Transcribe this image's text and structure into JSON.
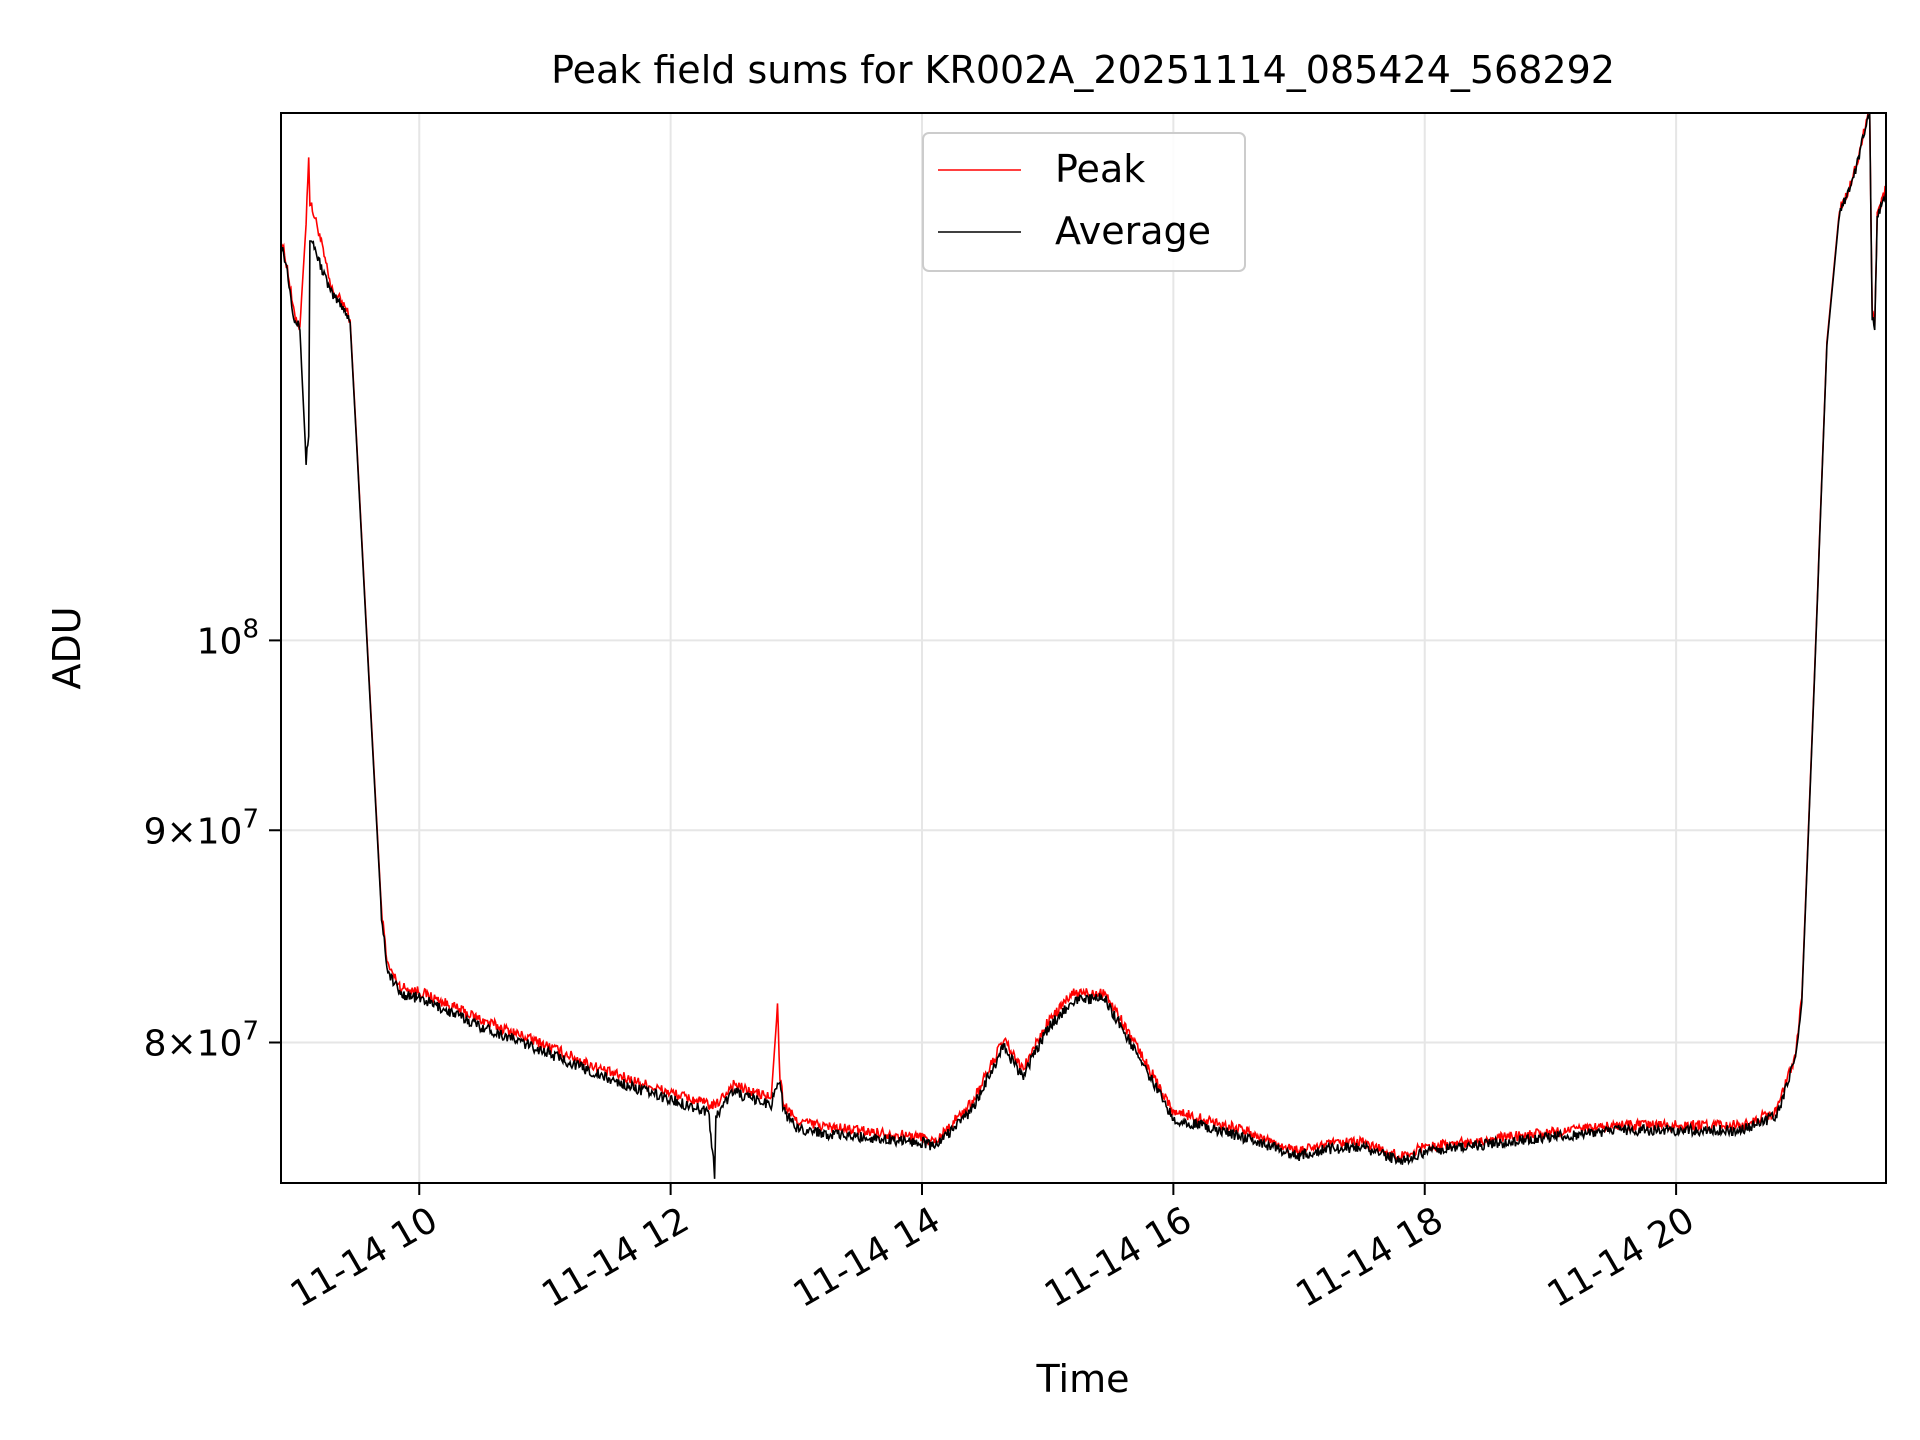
{
  "chart_data": {
    "type": "line",
    "title": "Peak field sums for KR002A_20251114_085424_568292",
    "xlabel": "Time",
    "ylabel": "ADU",
    "x_unit": "hours (2025-11-14)",
    "xlim": [
      8.9,
      21.67
    ],
    "ylim": [
      74000000,
      134000000
    ],
    "yscale": "log",
    "grid": true,
    "legend_position": "upper center",
    "x_ticks": [
      {
        "value": 10,
        "label": "11-14 10"
      },
      {
        "value": 12,
        "label": "11-14 12"
      },
      {
        "value": 14,
        "label": "11-14 14"
      },
      {
        "value": 16,
        "label": "11-14 16"
      },
      {
        "value": 18,
        "label": "11-14 18"
      },
      {
        "value": 20,
        "label": "11-14 20"
      }
    ],
    "y_ticks": [
      {
        "value": 80000000,
        "label_base": "8×10",
        "label_exp": "7"
      },
      {
        "value": 90000000,
        "label_base": "9×10",
        "label_exp": "7"
      },
      {
        "value": 100000000,
        "label_base": "10",
        "label_exp": "8"
      }
    ],
    "series": [
      {
        "name": "Peak",
        "color": "#ff0000",
        "x": [
          8.9,
          8.95,
          9.0,
          9.05,
          9.1,
          9.12,
          9.13,
          9.15,
          9.2,
          9.3,
          9.4,
          9.45,
          9.5,
          9.6,
          9.7,
          9.75,
          9.85,
          10.0,
          10.5,
          11.0,
          11.5,
          12.0,
          12.3,
          12.35,
          12.5,
          12.6,
          12.8,
          12.85,
          12.87,
          12.9,
          13.0,
          13.3,
          14.0,
          14.1,
          14.4,
          14.65,
          14.8,
          15.0,
          15.2,
          15.45,
          15.7,
          16.0,
          16.5,
          17.0,
          17.2,
          17.5,
          17.8,
          18.0,
          18.5,
          19.0,
          19.5,
          20.0,
          20.5,
          20.8,
          20.95,
          21.0,
          21.1,
          21.2,
          21.3,
          21.4,
          21.52,
          21.54,
          21.56,
          21.58,
          21.6,
          21.67
        ],
        "values": [
          125000000,
          123000000,
          120000000,
          119000000,
          126000000,
          131000000,
          127500000,
          127000000,
          125500000,
          121500000,
          120500000,
          119500000,
          112000000,
          98000000,
          86000000,
          83500000,
          82500000,
          82300000,
          81000000,
          79900000,
          78700000,
          77800000,
          77300000,
          77200000,
          78200000,
          77900000,
          77600000,
          81600000,
          78500000,
          77300000,
          76600000,
          76300000,
          75900000,
          75700000,
          77400000,
          80100000,
          78800000,
          80900000,
          82200000,
          82300000,
          79900000,
          77000000,
          76300000,
          75300000,
          75600000,
          75700000,
          75100000,
          75500000,
          75800000,
          76100000,
          76400000,
          76400000,
          76400000,
          77000000,
          79500000,
          82000000,
          98000000,
          118000000,
          127000000,
          129000000,
          133500000,
          134000000,
          120000000,
          119000000,
          126500000,
          128500000
        ]
      },
      {
        "name": "Average",
        "color": "#000000",
        "x": [
          8.9,
          8.95,
          9.0,
          9.05,
          9.1,
          9.12,
          9.13,
          9.15,
          9.2,
          9.3,
          9.4,
          9.45,
          9.5,
          9.6,
          9.7,
          9.75,
          9.85,
          10.0,
          10.5,
          11.0,
          11.5,
          12.0,
          12.3,
          12.34,
          12.35,
          12.36,
          12.5,
          12.6,
          12.8,
          12.85,
          12.87,
          12.9,
          13.0,
          13.3,
          14.0,
          14.1,
          14.4,
          14.65,
          14.8,
          15.0,
          15.2,
          15.45,
          15.7,
          16.0,
          16.5,
          17.0,
          17.2,
          17.5,
          17.8,
          18.0,
          18.5,
          19.0,
          19.5,
          20.0,
          20.5,
          20.8,
          20.95,
          21.0,
          21.1,
          21.2,
          21.3,
          21.4,
          21.52,
          21.54,
          21.56,
          21.58,
          21.6,
          21.67
        ],
        "values": [
          124800000,
          122800000,
          119800000,
          118800000,
          110500000,
          112000000,
          125000000,
          124800000,
          123500000,
          121200000,
          120300000,
          119300000,
          111800000,
          97800000,
          85800000,
          83200000,
          82200000,
          82000000,
          80700000,
          79600000,
          78400000,
          77500000,
          77000000,
          75000000,
          74000000,
          76800000,
          77900000,
          77600000,
          77300000,
          78300000,
          78200000,
          77000000,
          76300000,
          76000000,
          75700000,
          75500000,
          77100000,
          79800000,
          78500000,
          80600000,
          81900000,
          82000000,
          79600000,
          76700000,
          76000000,
          75100000,
          75400000,
          75500000,
          74900000,
          75300000,
          75600000,
          75900000,
          76200000,
          76200000,
          76200000,
          76800000,
          79300000,
          81800000,
          97800000,
          117800000,
          126800000,
          128800000,
          133300000,
          134000000,
          119800000,
          118800000,
          126300000,
          128300000
        ]
      }
    ]
  }
}
